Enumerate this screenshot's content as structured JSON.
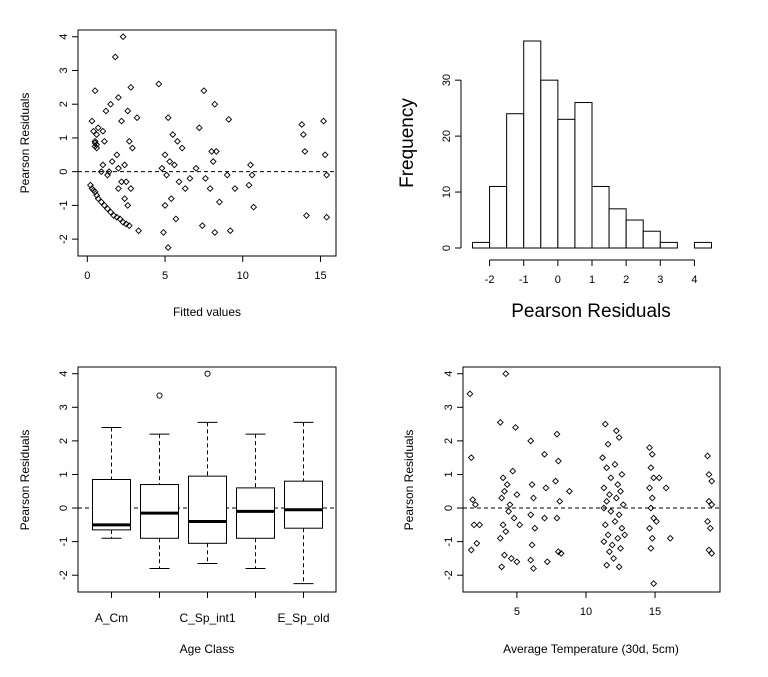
{
  "chart_data": [
    {
      "type": "scatter",
      "xlabel": "Fitted values",
      "ylabel": "Pearson Residuals",
      "xticks": [
        "0",
        "5",
        "10",
        "15"
      ],
      "yticks": [
        "-2",
        "-1",
        "0",
        "1",
        "2",
        "3",
        "4"
      ],
      "xlim": [
        -0.6,
        16
      ],
      "ylim": [
        -2.5,
        4.2
      ],
      "reference_line": 0,
      "points": [
        [
          0.3,
          1.5
        ],
        [
          0.5,
          2.4
        ],
        [
          0.4,
          1.2
        ],
        [
          0.6,
          1.1
        ],
        [
          0.5,
          0.9
        ],
        [
          0.5,
          0.85
        ],
        [
          0.6,
          0.8
        ],
        [
          0.5,
          0.75
        ],
        [
          0.6,
          0.7
        ],
        [
          0.7,
          1.3
        ],
        [
          1.0,
          1.2
        ],
        [
          1.2,
          1.8
        ],
        [
          1.1,
          0.9
        ],
        [
          1.5,
          2.0
        ],
        [
          1.8,
          3.4
        ],
        [
          2.0,
          2.2
        ],
        [
          2.3,
          4.0
        ],
        [
          2.6,
          1.8
        ],
        [
          2.8,
          2.5
        ],
        [
          2.2,
          1.5
        ],
        [
          1.9,
          0.5
        ],
        [
          1.6,
          0.3
        ],
        [
          2.4,
          0.2
        ],
        [
          2.7,
          0.9
        ],
        [
          2.9,
          0.7
        ],
        [
          3.2,
          1.6
        ],
        [
          2.5,
          -0.3
        ],
        [
          2.8,
          -0.5
        ],
        [
          1.3,
          -0.1
        ],
        [
          1.0,
          0.2
        ],
        [
          1.4,
          0.0
        ],
        [
          0.9,
          0.0
        ],
        [
          2.0,
          0.1
        ],
        [
          0.2,
          -0.4
        ],
        [
          0.3,
          -0.5
        ],
        [
          0.4,
          -0.55
        ],
        [
          0.5,
          -0.6
        ],
        [
          0.6,
          -0.7
        ],
        [
          0.7,
          -0.8
        ],
        [
          0.9,
          -0.9
        ],
        [
          1.1,
          -1.0
        ],
        [
          1.3,
          -1.1
        ],
        [
          1.5,
          -1.2
        ],
        [
          1.7,
          -1.3
        ],
        [
          1.9,
          -1.35
        ],
        [
          2.1,
          -1.4
        ],
        [
          2.3,
          -1.5
        ],
        [
          2.5,
          -1.55
        ],
        [
          2.7,
          -1.6
        ],
        [
          2.0,
          -0.5
        ],
        [
          2.4,
          -0.8
        ],
        [
          2.6,
          -1.0
        ],
        [
          2.2,
          -0.3
        ],
        [
          3.3,
          -1.75
        ],
        [
          4.6,
          2.6
        ],
        [
          5.2,
          1.6
        ],
        [
          5.5,
          1.1
        ],
        [
          5.8,
          0.9
        ],
        [
          6.1,
          0.7
        ],
        [
          5.0,
          0.5
        ],
        [
          5.3,
          0.3
        ],
        [
          5.6,
          0.2
        ],
        [
          4.8,
          0.1
        ],
        [
          5.1,
          -0.1
        ],
        [
          5.9,
          -0.3
        ],
        [
          6.3,
          -0.5
        ],
        [
          5.4,
          -0.8
        ],
        [
          5.0,
          -1.0
        ],
        [
          5.7,
          -1.4
        ],
        [
          4.9,
          -1.8
        ],
        [
          5.2,
          -2.25
        ],
        [
          6.6,
          -0.2
        ],
        [
          7.0,
          0.1
        ],
        [
          7.5,
          2.4
        ],
        [
          8.2,
          2.0
        ],
        [
          7.2,
          1.3
        ],
        [
          8.0,
          0.6
        ],
        [
          8.3,
          0.6
        ],
        [
          8.1,
          0.3
        ],
        [
          7.6,
          -0.2
        ],
        [
          7.9,
          -0.5
        ],
        [
          8.5,
          -0.9
        ],
        [
          7.4,
          -1.6
        ],
        [
          8.2,
          -1.8
        ],
        [
          9.1,
          1.55
        ],
        [
          9.0,
          -0.1
        ],
        [
          9.5,
          -0.5
        ],
        [
          9.2,
          -1.75
        ],
        [
          10.5,
          0.2
        ],
        [
          10.6,
          -0.1
        ],
        [
          10.4,
          -0.4
        ],
        [
          10.7,
          -1.05
        ],
        [
          13.8,
          1.4
        ],
        [
          13.9,
          1.1
        ],
        [
          14.0,
          0.6
        ],
        [
          14.1,
          -1.3
        ],
        [
          15.2,
          1.5
        ],
        [
          15.3,
          0.5
        ],
        [
          15.4,
          -0.1
        ],
        [
          15.4,
          -1.35
        ]
      ]
    },
    {
      "type": "bar",
      "xlabel": "Pearson Residuals",
      "ylabel": "Frequency",
      "xticks": [
        "-2",
        "-1",
        "0",
        "1",
        "2",
        "3",
        "4"
      ],
      "yticks": [
        "0",
        "10",
        "20",
        "30"
      ],
      "xlim": [
        -2.5,
        4.5
      ],
      "ylim": [
        0,
        37
      ],
      "bin_edges": [
        -2.5,
        -2,
        -1.5,
        -1,
        -0.5,
        0,
        0.5,
        1,
        1.5,
        2,
        2.5,
        3,
        3.5,
        4,
        4.5
      ],
      "values": [
        1,
        11,
        24,
        37,
        30,
        23,
        26,
        11,
        7,
        5,
        3,
        1,
        0,
        1
      ]
    },
    {
      "type": "box",
      "xlabel": "Age Class",
      "ylabel": "Pearson Residuals",
      "category_labels": [
        "A_Cm",
        "",
        "C_Sp_int1",
        "",
        "E_Sp_old"
      ],
      "yticks": [
        "-2",
        "-1",
        "0",
        "1",
        "2",
        "3",
        "4"
      ],
      "ylim": [
        -2.5,
        4.2
      ],
      "reference_line": 0,
      "boxes": [
        {
          "whisker_low": -0.9,
          "q1": -0.65,
          "median": -0.5,
          "q3": 0.85,
          "whisker_high": 2.4,
          "outliers": []
        },
        {
          "whisker_low": -1.8,
          "q1": -0.9,
          "median": -0.15,
          "q3": 0.7,
          "whisker_high": 2.2,
          "outliers": [
            3.35
          ]
        },
        {
          "whisker_low": -1.65,
          "q1": -1.05,
          "median": -0.4,
          "q3": 0.95,
          "whisker_high": 2.55,
          "outliers": [
            4.0
          ]
        },
        {
          "whisker_low": -1.8,
          "q1": -0.9,
          "median": -0.1,
          "q3": 0.6,
          "whisker_high": 2.2,
          "outliers": []
        },
        {
          "whisker_low": -2.25,
          "q1": -0.6,
          "median": -0.05,
          "q3": 0.8,
          "whisker_high": 2.55,
          "outliers": []
        }
      ]
    },
    {
      "type": "scatter",
      "xlabel": "Average Temperature (30d, 5cm)",
      "ylabel": "Pearson Residuals",
      "xticks": [
        "5",
        "10",
        "15"
      ],
      "yticks": [
        "-2",
        "-1",
        "0",
        "1",
        "2",
        "3",
        "4"
      ],
      "xlim": [
        1.1,
        19.7
      ],
      "ylim": [
        -2.5,
        4.2
      ],
      "reference_line": 0,
      "points": [
        [
          1.6,
          3.4
        ],
        [
          1.7,
          1.5
        ],
        [
          1.8,
          0.25
        ],
        [
          1.9,
          -0.5
        ],
        [
          1.7,
          -1.25
        ],
        [
          2.1,
          -1.05
        ],
        [
          2.3,
          -0.5
        ],
        [
          2.0,
          0.1
        ],
        [
          3.8,
          2.55
        ],
        [
          4.2,
          4.0
        ],
        [
          4.0,
          0.9
        ],
        [
          4.3,
          0.7
        ],
        [
          4.1,
          0.5
        ],
        [
          3.9,
          0.3
        ],
        [
          4.5,
          0.1
        ],
        [
          4.4,
          -0.1
        ],
        [
          4.0,
          -0.5
        ],
        [
          4.2,
          -0.7
        ],
        [
          3.8,
          -0.9
        ],
        [
          4.1,
          -1.4
        ],
        [
          3.9,
          -1.75
        ],
        [
          4.6,
          -1.5
        ],
        [
          4.7,
          1.1
        ],
        [
          4.9,
          2.4
        ],
        [
          5.0,
          0.4
        ],
        [
          5.2,
          -0.5
        ],
        [
          5.0,
          -1.6
        ],
        [
          4.8,
          -0.3
        ],
        [
          6.0,
          2.0
        ],
        [
          6.1,
          0.7
        ],
        [
          6.2,
          0.3
        ],
        [
          6.0,
          -0.2
        ],
        [
          6.3,
          -0.6
        ],
        [
          6.1,
          -1.1
        ],
        [
          6.0,
          -1.55
        ],
        [
          6.2,
          -1.8
        ],
        [
          7.0,
          1.6
        ],
        [
          7.1,
          0.6
        ],
        [
          7.0,
          -0.3
        ],
        [
          7.2,
          -1.6
        ],
        [
          7.9,
          2.2
        ],
        [
          8.0,
          1.4
        ],
        [
          7.8,
          0.8
        ],
        [
          8.1,
          0.2
        ],
        [
          7.9,
          -0.3
        ],
        [
          8.0,
          -1.3
        ],
        [
          8.2,
          -1.35
        ],
        [
          8.8,
          0.5
        ],
        [
          11.4,
          2.5
        ],
        [
          11.6,
          1.9
        ],
        [
          11.2,
          1.5
        ],
        [
          11.5,
          1.2
        ],
        [
          11.8,
          0.9
        ],
        [
          11.3,
          0.6
        ],
        [
          11.7,
          0.4
        ],
        [
          11.5,
          0.2
        ],
        [
          11.3,
          0.0
        ],
        [
          11.8,
          -0.1
        ],
        [
          11.4,
          -0.5
        ],
        [
          11.6,
          -0.8
        ],
        [
          11.3,
          -1.0
        ],
        [
          11.7,
          -1.3
        ],
        [
          11.5,
          -1.7
        ],
        [
          11.9,
          -1.1
        ],
        [
          12.2,
          2.3
        ],
        [
          12.4,
          2.1
        ],
        [
          12.1,
          1.3
        ],
        [
          12.6,
          1.0
        ],
        [
          12.3,
          0.7
        ],
        [
          12.5,
          0.5
        ],
        [
          12.2,
          0.3
        ],
        [
          12.7,
          0.1
        ],
        [
          12.4,
          -0.2
        ],
        [
          12.1,
          -0.4
        ],
        [
          12.6,
          -0.6
        ],
        [
          12.3,
          -0.9
        ],
        [
          12.5,
          -1.2
        ],
        [
          12.0,
          -1.5
        ],
        [
          12.4,
          -1.75
        ],
        [
          12.8,
          -0.8
        ],
        [
          14.6,
          1.8
        ],
        [
          14.8,
          1.6
        ],
        [
          14.7,
          1.2
        ],
        [
          14.9,
          0.9
        ],
        [
          14.6,
          0.6
        ],
        [
          14.8,
          0.3
        ],
        [
          14.7,
          0.0
        ],
        [
          14.9,
          -0.3
        ],
        [
          14.6,
          -0.6
        ],
        [
          14.8,
          -0.9
        ],
        [
          14.7,
          -1.2
        ],
        [
          14.9,
          -2.25
        ],
        [
          15.3,
          0.9
        ],
        [
          15.1,
          -0.4
        ],
        [
          15.8,
          0.6
        ],
        [
          16.1,
          -0.9
        ],
        [
          18.8,
          1.55
        ],
        [
          18.9,
          1.0
        ],
        [
          19.1,
          0.8
        ],
        [
          18.9,
          0.2
        ],
        [
          19.1,
          0.1
        ],
        [
          18.8,
          -0.4
        ],
        [
          19.0,
          -0.6
        ],
        [
          18.9,
          -1.25
        ],
        [
          19.1,
          -1.35
        ]
      ]
    }
  ]
}
